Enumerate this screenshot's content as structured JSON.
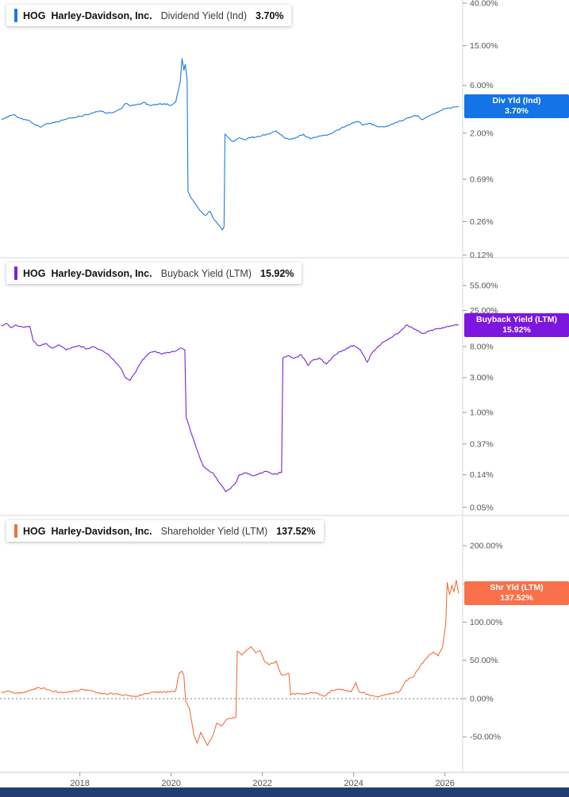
{
  "x_axis": {
    "domain": [
      2016.25,
      2026.389
    ],
    "ticks": [
      2018,
      2020,
      2022,
      2024,
      2026
    ],
    "labels": [
      "2018",
      "2020",
      "2022",
      "2024",
      "2026"
    ]
  },
  "colors": {
    "dividend_blue": "#1b7ce0",
    "buyback_purple": "#7a22d8",
    "shareholder_orange": "#ef6f3e",
    "bottom_bar_navy": "#223d73"
  },
  "chart_data": [
    {
      "type": "line",
      "ticker": "HOG",
      "company": "Harley-Davidson, Inc.",
      "metric": "Dividend Yield (Ind)",
      "value_label": "3.70%",
      "last_value": 3.7,
      "badge": {
        "line1": "Div Yld (Ind)",
        "line2": "3.70%"
      },
      "line_color": "#1b7ce0",
      "badge_color": "#1473e6",
      "scale": "log",
      "y_domain": [
        43.0,
        0.113
      ],
      "y_ticks": [
        40,
        15,
        6,
        2,
        0.69,
        0.26,
        0.12
      ],
      "y_tick_labels": [
        "40.00%",
        "15.00%",
        "6.00%",
        "2.00%",
        "0.69%",
        "0.26%",
        "0.12%"
      ],
      "zero_line": false,
      "points": [
        [
          2016.28,
          2.75
        ],
        [
          2016.4,
          2.9
        ],
        [
          2016.55,
          3.05
        ],
        [
          2016.7,
          2.8
        ],
        [
          2016.85,
          2.7
        ],
        [
          2017.0,
          2.45
        ],
        [
          2017.15,
          2.3
        ],
        [
          2017.3,
          2.5
        ],
        [
          2017.5,
          2.6
        ],
        [
          2017.7,
          2.75
        ],
        [
          2017.85,
          2.85
        ],
        [
          2018.0,
          2.95
        ],
        [
          2018.15,
          3.05
        ],
        [
          2018.3,
          3.2
        ],
        [
          2018.45,
          3.35
        ],
        [
          2018.6,
          3.15
        ],
        [
          2018.75,
          3.25
        ],
        [
          2018.9,
          3.5
        ],
        [
          2019.0,
          3.95
        ],
        [
          2019.1,
          3.75
        ],
        [
          2019.25,
          3.85
        ],
        [
          2019.4,
          4.05
        ],
        [
          2019.55,
          3.75
        ],
        [
          2019.7,
          3.85
        ],
        [
          2019.85,
          3.95
        ],
        [
          2020.0,
          3.8
        ],
        [
          2020.1,
          4.1
        ],
        [
          2020.2,
          6.5
        ],
        [
          2020.24,
          11.2
        ],
        [
          2020.28,
          8.5
        ],
        [
          2020.31,
          9.8
        ],
        [
          2020.35,
          6.8
        ],
        [
          2020.37,
          0.52
        ],
        [
          2020.45,
          0.44
        ],
        [
          2020.55,
          0.38
        ],
        [
          2020.65,
          0.33
        ],
        [
          2020.75,
          0.3
        ],
        [
          2020.85,
          0.33
        ],
        [
          2020.95,
          0.27
        ],
        [
          2021.05,
          0.24
        ],
        [
          2021.12,
          0.215
        ],
        [
          2021.16,
          0.23
        ],
        [
          2021.18,
          1.95
        ],
        [
          2021.25,
          1.8
        ],
        [
          2021.35,
          1.65
        ],
        [
          2021.5,
          1.8
        ],
        [
          2021.6,
          1.72
        ],
        [
          2021.75,
          1.8
        ],
        [
          2021.9,
          1.85
        ],
        [
          2022.0,
          1.9
        ],
        [
          2022.15,
          1.95
        ],
        [
          2022.3,
          2.1
        ],
        [
          2022.45,
          1.85
        ],
        [
          2022.6,
          1.72
        ],
        [
          2022.75,
          1.82
        ],
        [
          2022.9,
          1.95
        ],
        [
          2023.05,
          1.75
        ],
        [
          2023.2,
          1.82
        ],
        [
          2023.35,
          1.9
        ],
        [
          2023.5,
          1.98
        ],
        [
          2023.65,
          2.15
        ],
        [
          2023.8,
          2.3
        ],
        [
          2023.95,
          2.5
        ],
        [
          2024.1,
          2.62
        ],
        [
          2024.2,
          2.4
        ],
        [
          2024.35,
          2.5
        ],
        [
          2024.5,
          2.35
        ],
        [
          2024.65,
          2.3
        ],
        [
          2024.8,
          2.42
        ],
        [
          2024.95,
          2.55
        ],
        [
          2025.1,
          2.7
        ],
        [
          2025.25,
          2.9
        ],
        [
          2025.4,
          3.0
        ],
        [
          2025.5,
          2.72
        ],
        [
          2025.6,
          2.9
        ],
        [
          2025.75,
          3.1
        ],
        [
          2025.9,
          3.35
        ],
        [
          2026.0,
          3.5
        ],
        [
          2026.1,
          3.55
        ],
        [
          2026.2,
          3.65
        ],
        [
          2026.3,
          3.7
        ]
      ]
    },
    {
      "type": "line",
      "ticker": "HOG",
      "company": "Harley-Davidson, Inc.",
      "metric": "Buyback Yield (LTM)",
      "value_label": "15.92%",
      "last_value": 15.92,
      "badge": {
        "line1": "Buyback Yield (LTM)",
        "line2": "15.92%"
      },
      "line_color": "#7a22d8",
      "badge_color": "#7d17e0",
      "scale": "log",
      "y_domain": [
        132.0,
        0.0387
      ],
      "y_ticks": [
        55,
        25,
        8,
        3,
        1,
        0.37,
        0.14,
        0.05
      ],
      "y_tick_labels": [
        "55.00%",
        "25.00%",
        "8.00%",
        "3.00%",
        "1.00%",
        "0.37%",
        "0.14%",
        "0.05%"
      ],
      "zero_line": false,
      "points": [
        [
          2016.28,
          15.5
        ],
        [
          2016.4,
          16.5
        ],
        [
          2016.5,
          14.5
        ],
        [
          2016.6,
          15.8
        ],
        [
          2016.75,
          14.8
        ],
        [
          2016.9,
          15.2
        ],
        [
          2016.98,
          9.5
        ],
        [
          2017.1,
          8.2
        ],
        [
          2017.25,
          8.8
        ],
        [
          2017.4,
          7.6
        ],
        [
          2017.55,
          8.4
        ],
        [
          2017.7,
          7.2
        ],
        [
          2017.85,
          7.8
        ],
        [
          2018.0,
          8.2
        ],
        [
          2018.15,
          7.4
        ],
        [
          2018.3,
          7.9
        ],
        [
          2018.45,
          7.2
        ],
        [
          2018.6,
          6.4
        ],
        [
          2018.75,
          5.2
        ],
        [
          2018.9,
          4.0
        ],
        [
          2019.0,
          3.0
        ],
        [
          2019.1,
          2.75
        ],
        [
          2019.2,
          3.4
        ],
        [
          2019.35,
          5.0
        ],
        [
          2019.5,
          6.4
        ],
        [
          2019.65,
          6.9
        ],
        [
          2019.8,
          6.3
        ],
        [
          2019.95,
          6.6
        ],
        [
          2020.1,
          6.9
        ],
        [
          2020.2,
          7.6
        ],
        [
          2020.3,
          7.2
        ],
        [
          2020.33,
          0.85
        ],
        [
          2020.45,
          0.5
        ],
        [
          2020.55,
          0.33
        ],
        [
          2020.62,
          0.25
        ],
        [
          2020.7,
          0.185
        ],
        [
          2020.8,
          0.165
        ],
        [
          2020.9,
          0.15
        ],
        [
          2021.0,
          0.125
        ],
        [
          2021.1,
          0.1
        ],
        [
          2021.2,
          0.082
        ],
        [
          2021.3,
          0.09
        ],
        [
          2021.4,
          0.105
        ],
        [
          2021.5,
          0.14
        ],
        [
          2021.65,
          0.15
        ],
        [
          2021.8,
          0.135
        ],
        [
          2021.95,
          0.148
        ],
        [
          2022.1,
          0.155
        ],
        [
          2022.25,
          0.142
        ],
        [
          2022.42,
          0.15
        ],
        [
          2022.45,
          5.6
        ],
        [
          2022.55,
          6.0
        ],
        [
          2022.7,
          5.5
        ],
        [
          2022.85,
          6.2
        ],
        [
          2023.0,
          4.4
        ],
        [
          2023.1,
          5.2
        ],
        [
          2023.25,
          5.6
        ],
        [
          2023.4,
          4.6
        ],
        [
          2023.55,
          5.8
        ],
        [
          2023.7,
          6.8
        ],
        [
          2023.85,
          7.6
        ],
        [
          2024.0,
          8.3
        ],
        [
          2024.15,
          7.2
        ],
        [
          2024.3,
          4.9
        ],
        [
          2024.4,
          6.5
        ],
        [
          2024.55,
          8.2
        ],
        [
          2024.7,
          9.6
        ],
        [
          2024.85,
          10.8
        ],
        [
          2025.0,
          12.6
        ],
        [
          2025.15,
          15.8
        ],
        [
          2025.3,
          14.2
        ],
        [
          2025.45,
          12.6
        ],
        [
          2025.55,
          12.2
        ],
        [
          2025.7,
          13.4
        ],
        [
          2025.85,
          14.0
        ],
        [
          2026.0,
          14.8
        ],
        [
          2026.15,
          15.4
        ],
        [
          2026.3,
          15.92
        ]
      ]
    },
    {
      "type": "line",
      "ticker": "HOG",
      "company": "Harley-Davidson, Inc.",
      "metric": "Shareholder Yield (LTM)",
      "value_label": "137.52%",
      "last_value": 137.52,
      "badge": {
        "line1": "Shr Yld (LTM)",
        "line2": "137.52%"
      },
      "line_color": "#ef6f3e",
      "badge_color": "#f8714a",
      "scale": "linear",
      "y_domain": [
        239.4,
        -96.4
      ],
      "y_ticks": [
        200,
        150,
        100,
        50,
        0,
        -50
      ],
      "y_tick_labels": [
        "200.00%",
        "150.00%",
        "100.00%",
        "50.00%",
        "0.00%",
        "-50.00%"
      ],
      "zero_line": true,
      "points": [
        [
          2016.28,
          8
        ],
        [
          2016.45,
          10
        ],
        [
          2016.6,
          7
        ],
        [
          2016.8,
          9
        ],
        [
          2017.0,
          13
        ],
        [
          2017.2,
          14
        ],
        [
          2017.35,
          11
        ],
        [
          2017.5,
          9
        ],
        [
          2017.7,
          8
        ],
        [
          2017.9,
          10
        ],
        [
          2018.05,
          12
        ],
        [
          2018.2,
          11
        ],
        [
          2018.35,
          8
        ],
        [
          2018.5,
          6
        ],
        [
          2018.7,
          7
        ],
        [
          2018.9,
          5
        ],
        [
          2019.05,
          4
        ],
        [
          2019.2,
          2.5
        ],
        [
          2019.4,
          6
        ],
        [
          2019.6,
          9
        ],
        [
          2019.8,
          8
        ],
        [
          2019.95,
          9
        ],
        [
          2020.1,
          10
        ],
        [
          2020.18,
          34
        ],
        [
          2020.24,
          36
        ],
        [
          2020.28,
          30
        ],
        [
          2020.32,
          -4
        ],
        [
          2020.4,
          -12
        ],
        [
          2020.5,
          -48
        ],
        [
          2020.57,
          -58
        ],
        [
          2020.65,
          -44
        ],
        [
          2020.72,
          -52
        ],
        [
          2020.8,
          -61
        ],
        [
          2020.9,
          -50
        ],
        [
          2021.0,
          -32
        ],
        [
          2021.1,
          -36
        ],
        [
          2021.2,
          -28
        ],
        [
          2021.3,
          -26
        ],
        [
          2021.42,
          -24
        ],
        [
          2021.45,
          62
        ],
        [
          2021.55,
          57
        ],
        [
          2021.65,
          64
        ],
        [
          2021.75,
          68
        ],
        [
          2021.85,
          60
        ],
        [
          2021.95,
          63
        ],
        [
          2022.05,
          48
        ],
        [
          2022.15,
          44
        ],
        [
          2022.3,
          49
        ],
        [
          2022.42,
          31
        ],
        [
          2022.58,
          33
        ],
        [
          2022.62,
          5
        ],
        [
          2022.75,
          7
        ],
        [
          2022.9,
          6
        ],
        [
          2023.05,
          8
        ],
        [
          2023.2,
          7
        ],
        [
          2023.35,
          3
        ],
        [
          2023.5,
          10
        ],
        [
          2023.65,
          12
        ],
        [
          2023.8,
          11
        ],
        [
          2023.95,
          9
        ],
        [
          2024.05,
          21
        ],
        [
          2024.12,
          9
        ],
        [
          2024.25,
          7
        ],
        [
          2024.4,
          4
        ],
        [
          2024.55,
          2.5
        ],
        [
          2024.7,
          5
        ],
        [
          2024.85,
          7
        ],
        [
          2025.0,
          9
        ],
        [
          2025.15,
          24
        ],
        [
          2025.3,
          28
        ],
        [
          2025.45,
          42
        ],
        [
          2025.55,
          50
        ],
        [
          2025.65,
          57
        ],
        [
          2025.75,
          61
        ],
        [
          2025.85,
          56
        ],
        [
          2025.95,
          68
        ],
        [
          2026.02,
          100
        ],
        [
          2026.05,
          152
        ],
        [
          2026.1,
          136
        ],
        [
          2026.15,
          148
        ],
        [
          2026.2,
          140
        ],
        [
          2026.25,
          155
        ],
        [
          2026.3,
          137.52
        ]
      ]
    }
  ]
}
